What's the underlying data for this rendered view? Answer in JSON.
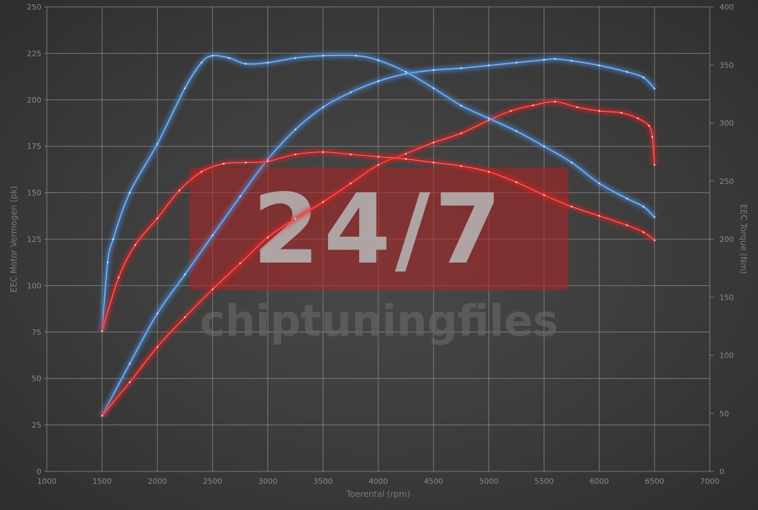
{
  "chart_data": {
    "type": "line",
    "title": "",
    "xlabel": "Toerental (rpm)",
    "ylabel_left": "EEC Motor Vermogen (pk)",
    "ylabel_right": "EEC Torque (Nm)",
    "xlim": [
      1000,
      7000
    ],
    "ylim_left": [
      0,
      250
    ],
    "ylim_right": [
      0,
      400
    ],
    "x_ticks": [
      1000,
      1500,
      2000,
      2500,
      3000,
      3500,
      4000,
      4500,
      5000,
      5500,
      6000,
      6500,
      7000
    ],
    "y_left_ticks": [
      0,
      25,
      50,
      75,
      100,
      125,
      150,
      175,
      200,
      225,
      250
    ],
    "y_right_ticks": [
      0,
      50,
      100,
      150,
      200,
      250,
      300,
      350,
      400
    ],
    "grid": true,
    "legend": "none",
    "series": [
      {
        "axis": "left",
        "color": "#4a90e2",
        "x": [
          1500,
          1750,
          2000,
          2250,
          2500,
          2750,
          3000,
          3250,
          3500,
          3750,
          4000,
          4250,
          4500,
          4750,
          5000,
          5250,
          5500,
          5600,
          5750,
          6000,
          6250,
          6400,
          6500
        ],
        "values": [
          30,
          58,
          85,
          106,
          127,
          148,
          168,
          184,
          196,
          204,
          210,
          214,
          216,
          217,
          218.5,
          220,
          221.5,
          222,
          221,
          218.5,
          215,
          212,
          206
        ]
      },
      {
        "axis": "left",
        "color": "#e82020",
        "x": [
          1500,
          1750,
          2000,
          2250,
          2500,
          2750,
          3000,
          3250,
          3500,
          3750,
          4000,
          4250,
          4500,
          4750,
          5000,
          5200,
          5400,
          5600,
          5800,
          6000,
          6200,
          6350,
          6450,
          6480,
          6500
        ],
        "values": [
          30,
          48,
          67,
          83,
          98,
          112,
          126,
          136,
          145,
          155,
          165,
          171,
          177,
          182,
          189,
          194,
          197,
          199,
          196,
          194,
          193,
          190,
          186,
          180,
          165
        ]
      },
      {
        "axis": "right",
        "color": "#4a90e2",
        "x": [
          1500,
          1550,
          1600,
          1750,
          2000,
          2250,
          2400,
          2500,
          2650,
          2800,
          3000,
          3250,
          3500,
          3800,
          4000,
          4250,
          4500,
          4750,
          5000,
          5250,
          5500,
          5750,
          6000,
          6250,
          6400,
          6500
        ],
        "values": [
          121,
          180,
          200,
          240,
          282,
          330,
          352,
          358,
          356,
          351,
          352,
          356,
          358,
          358,
          354,
          344,
          330,
          315,
          304,
          293,
          280,
          266,
          248,
          235,
          228,
          219
        ]
      },
      {
        "axis": "right",
        "color": "#e82020",
        "x": [
          1500,
          1650,
          1800,
          2000,
          2200,
          2400,
          2600,
          2800,
          3000,
          3250,
          3500,
          3750,
          4000,
          4250,
          4500,
          4750,
          5000,
          5250,
          5500,
          5750,
          6000,
          6250,
          6400,
          6500
        ],
        "values": [
          121,
          167,
          195,
          218,
          242,
          258,
          265,
          266,
          267,
          273,
          275,
          273,
          271,
          269,
          266,
          263,
          258,
          249,
          238,
          228,
          220,
          212,
          206,
          199
        ]
      }
    ]
  },
  "watermark": {
    "badge": "24/7",
    "text": "chiptuningfiles",
    "badge_color": "#b02020"
  }
}
